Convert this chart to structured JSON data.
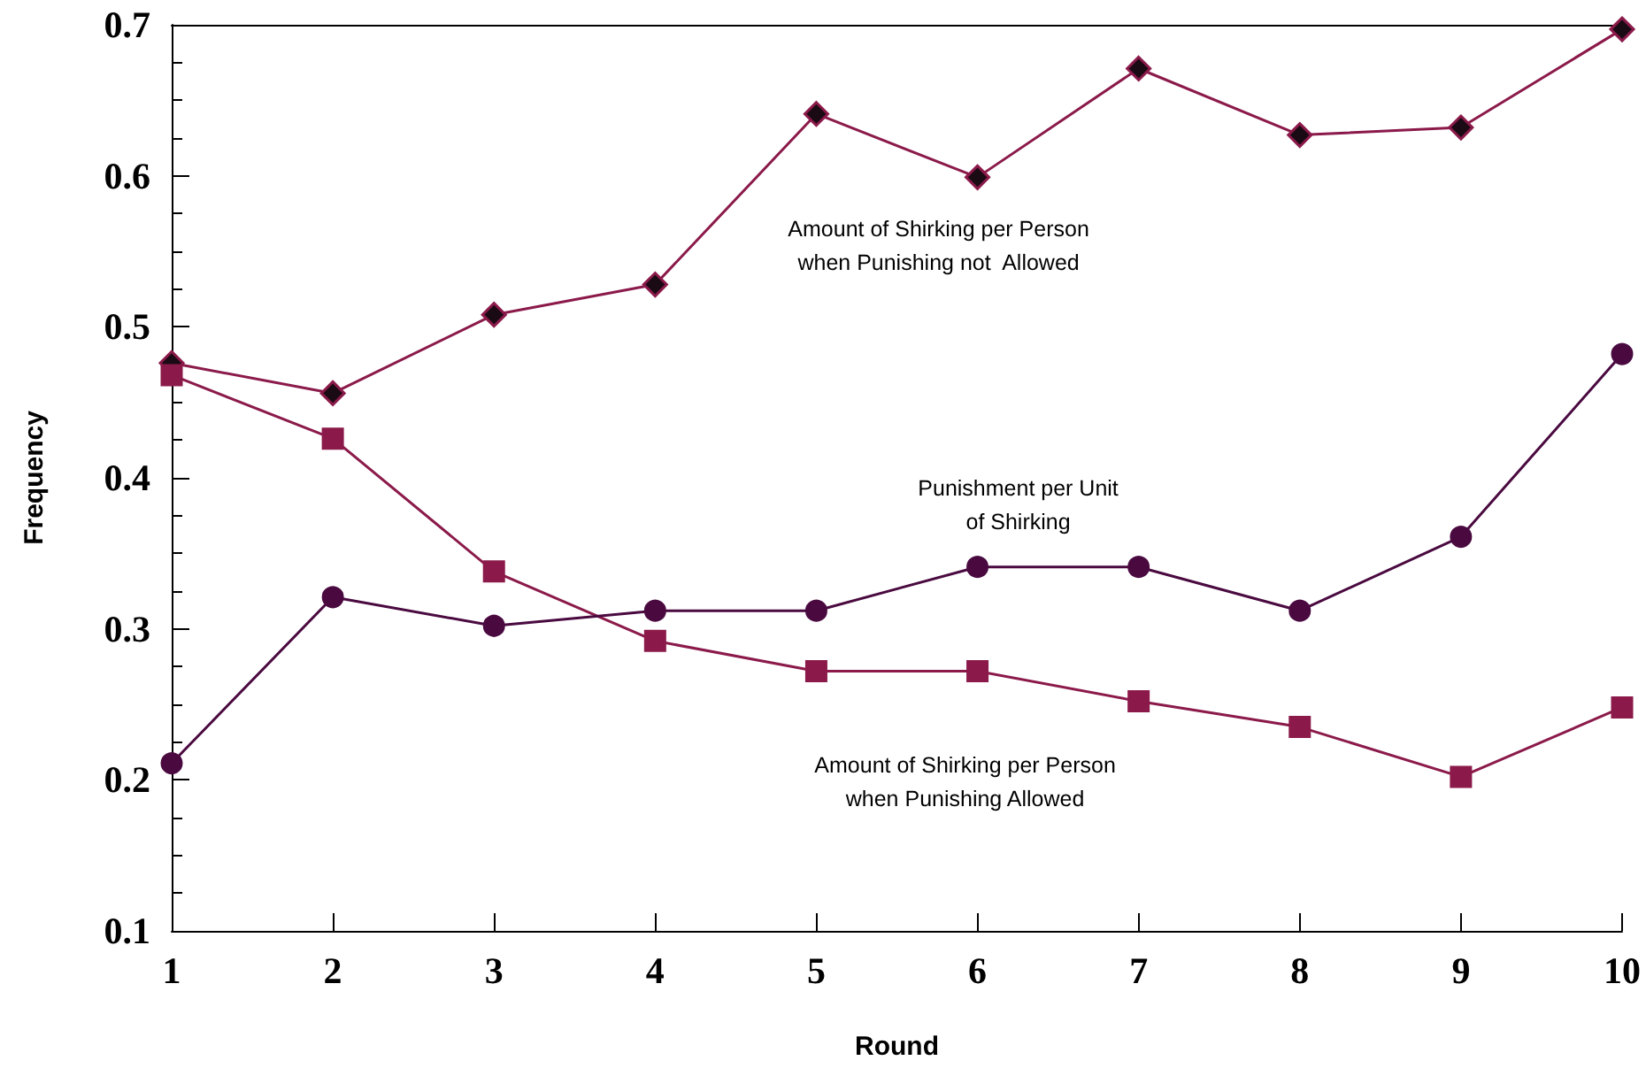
{
  "chart_data": {
    "type": "line",
    "xlabel": "Round",
    "ylabel": "Frequency",
    "x": [
      1,
      2,
      3,
      4,
      5,
      6,
      7,
      8,
      9,
      10
    ],
    "xlim": [
      1,
      10
    ],
    "xticks": [
      1,
      2,
      3,
      4,
      5,
      6,
      7,
      8,
      9,
      10
    ],
    "ylim": [
      0.1,
      0.7
    ],
    "yticks": [
      0.1,
      0.2,
      0.3,
      0.4,
      0.5,
      0.6,
      0.7
    ],
    "grid": false,
    "line_style": "solid",
    "series": [
      {
        "name": "Amount of Shirking per Person\nwhen Punishing not  Allowed",
        "color": "#8b1a4a",
        "marker": "diamond",
        "values": [
          0.476,
          0.456,
          0.508,
          0.528,
          0.641,
          0.599,
          0.671,
          0.627,
          0.632,
          0.697
        ]
      },
      {
        "name": "Amount of Shirking per Person\nwhen Punishing Allowed",
        "color": "#8b1a4a",
        "marker": "square",
        "values": [
          0.468,
          0.426,
          0.338,
          0.292,
          0.272,
          0.272,
          0.252,
          0.235,
          0.202,
          0.248
        ]
      },
      {
        "name": "Punishment per Unit\nof Shirking",
        "color": "#4a0a40",
        "marker": "circle",
        "values": [
          0.211,
          0.321,
          0.302,
          0.312,
          0.312,
          0.341,
          0.341,
          0.312,
          0.361,
          0.482
        ]
      }
    ]
  }
}
